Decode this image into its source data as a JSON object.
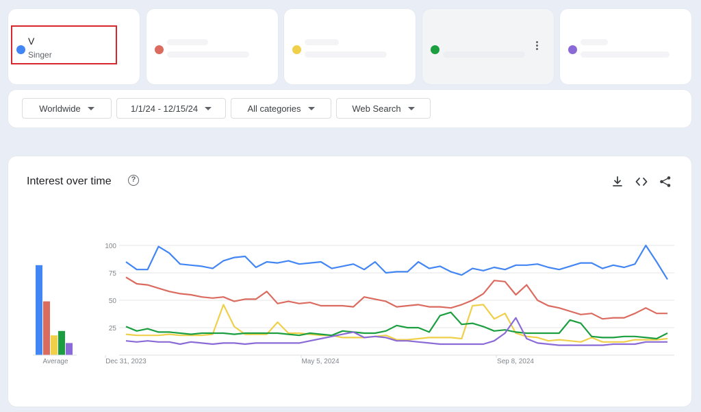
{
  "terms": [
    {
      "name": "V",
      "sub": "Singer",
      "color": "#4285f4"
    },
    {
      "name": "",
      "sub": "",
      "color": "#db6a5f"
    },
    {
      "name": "",
      "sub": "",
      "color": "#f0cf4a"
    },
    {
      "name": "",
      "sub": "",
      "color": "#1a9e3f"
    },
    {
      "name": "",
      "sub": "",
      "color": "#8a6ad6"
    }
  ],
  "filters": {
    "region": "Worldwide",
    "date_range": "1/1/24 - 12/15/24",
    "category": "All categories",
    "search_type": "Web Search"
  },
  "section": {
    "title": "Interest over time",
    "help_icon": "help-circle-icon",
    "download_icon": "download-icon",
    "embed_icon": "code-icon",
    "share_icon": "share-icon"
  },
  "chart_data": {
    "type": "line",
    "ylim": [
      0,
      100
    ],
    "yticks": [
      "100",
      "75",
      "50",
      "25"
    ],
    "xticks": [
      "Dec 31, 2023",
      "May 5, 2024",
      "Sep 8, 2024"
    ],
    "average_label": "Average",
    "averages": [
      82,
      49,
      18,
      22,
      11
    ],
    "series": [
      {
        "color": "#4285f4",
        "values": [
          85,
          78,
          78,
          99,
          93,
          83,
          82,
          81,
          79,
          86,
          89,
          90,
          80,
          85,
          84,
          86,
          83,
          84,
          85,
          79,
          81,
          83,
          78,
          85,
          75,
          76,
          76,
          85,
          79,
          81,
          76,
          73,
          79,
          77,
          80,
          78,
          82,
          82,
          83,
          80,
          78,
          81,
          84,
          84,
          79,
          82,
          80,
          83,
          100,
          85,
          69
        ]
      },
      {
        "color": "#db6a5f",
        "values": [
          71,
          65,
          64,
          61,
          58,
          56,
          55,
          53,
          52,
          53,
          49,
          51,
          51,
          58,
          47,
          49,
          47,
          48,
          45,
          45,
          45,
          44,
          53,
          51,
          49,
          44,
          45,
          46,
          44,
          44,
          43,
          46,
          50,
          56,
          68,
          67,
          55,
          64,
          50,
          45,
          43,
          40,
          37,
          38,
          33,
          34,
          34,
          38,
          43,
          38,
          38
        ]
      },
      {
        "color": "#f0cf4a",
        "values": [
          19,
          18,
          18,
          18,
          19,
          18,
          18,
          18,
          19,
          46,
          26,
          19,
          19,
          19,
          30,
          20,
          20,
          19,
          18,
          18,
          16,
          16,
          16,
          17,
          18,
          14,
          14,
          15,
          16,
          16,
          16,
          15,
          45,
          46,
          33,
          38,
          20,
          17,
          16,
          13,
          14,
          13,
          12,
          16,
          12,
          12,
          12,
          14,
          14,
          14,
          15
        ]
      },
      {
        "color": "#1a9e3f",
        "values": [
          26,
          22,
          24,
          21,
          21,
          20,
          19,
          20,
          20,
          20,
          19,
          20,
          20,
          20,
          20,
          19,
          18,
          20,
          19,
          18,
          22,
          21,
          20,
          20,
          22,
          27,
          25,
          25,
          21,
          36,
          39,
          28,
          29,
          26,
          22,
          23,
          21,
          20,
          20,
          20,
          20,
          32,
          29,
          17,
          16,
          16,
          17,
          17,
          16,
          15,
          20
        ]
      },
      {
        "color": "#8a6ad6",
        "values": [
          13,
          12,
          13,
          12,
          12,
          10,
          12,
          11,
          10,
          11,
          11,
          10,
          11,
          11,
          11,
          11,
          11,
          13,
          15,
          17,
          19,
          21,
          16,
          17,
          16,
          13,
          13,
          12,
          11,
          10,
          10,
          10,
          10,
          10,
          13,
          20,
          34,
          15,
          11,
          10,
          9,
          9,
          9,
          9,
          9,
          10,
          10,
          10,
          12,
          12,
          12
        ]
      }
    ]
  }
}
